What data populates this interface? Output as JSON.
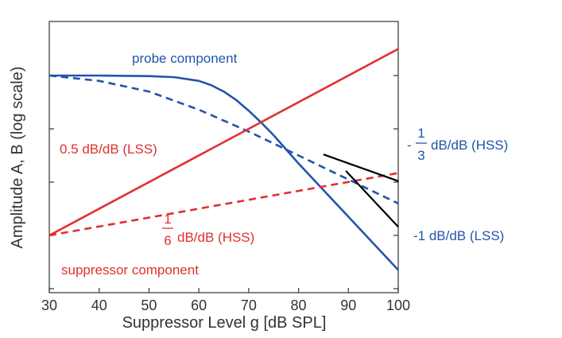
{
  "chart_data": {
    "type": "line",
    "title": "",
    "xlabel": "Suppressor Level g [dB SPL]",
    "ylabel": "Amplitude A, B (log scale)",
    "xlim": [
      30,
      100
    ],
    "x_ticks": [
      "30",
      "40",
      "50",
      "60",
      "70",
      "80",
      "90",
      "100"
    ],
    "y_log_scale": true,
    "y_tick_labels": [],
    "grid": false,
    "colors": {
      "probe": "#2255aa",
      "suppressor": "#e03030",
      "slope": "#000000",
      "axis": "#333333"
    },
    "series": [
      {
        "name": "probe component",
        "style": "solid",
        "x": [
          30,
          40,
          50,
          55,
          60,
          62.5,
          65,
          67.5,
          70,
          72.5,
          75,
          80,
          85,
          90,
          95,
          100
        ],
        "y": [
          0,
          0,
          -0.01,
          -0.03,
          -0.1,
          -0.18,
          -0.3,
          -0.46,
          -0.66,
          -0.88,
          -1.12,
          -1.65,
          -2.15,
          -2.65,
          -3.15,
          -3.65
        ]
      },
      {
        "name": "",
        "style": "dashed",
        "x": [
          30,
          40,
          50,
          60,
          70,
          80,
          90,
          100
        ],
        "y": [
          0,
          -0.1,
          -0.3,
          -0.64,
          -1.05,
          -1.5,
          -1.95,
          -2.4
        ]
      },
      {
        "name": "",
        "style": "solid",
        "x": [
          30,
          100
        ],
        "y": [
          -3,
          0.5
        ]
      },
      {
        "name": "suppressor component",
        "style": "dashed",
        "x": [
          30,
          100
        ],
        "y": [
          -3,
          -1.83
        ]
      },
      {
        "name": "",
        "style": "solid",
        "x": [
          85,
          100
        ],
        "y": [
          -1.48,
          -1.98
        ]
      },
      {
        "name": "",
        "style": "solid",
        "x": [
          89.5,
          100
        ],
        "y": [
          -1.79,
          -2.84
        ]
      }
    ],
    "annotations": [
      {
        "key": "probe",
        "text": "probe component"
      },
      {
        "key": "lss_half",
        "text": "0.5 dB/dB (LSS)"
      },
      {
        "key": "hss_sixth",
        "num": "1",
        "den": "6",
        "text": "dB/dB (HSS)"
      },
      {
        "key": "suppressor",
        "text": "suppressor component"
      },
      {
        "key": "hss_third",
        "sign": "-",
        "num": "1",
        "den": "3",
        "text": "dB/dB (HSS)"
      },
      {
        "key": "lss_minus1",
        "text": "-1 dB/dB (LSS)"
      }
    ]
  }
}
